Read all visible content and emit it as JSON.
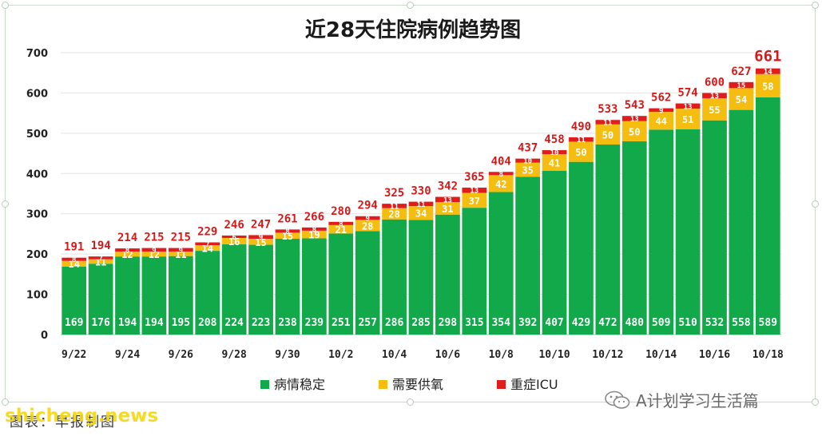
{
  "chart_data": {
    "type": "bar",
    "stacked": true,
    "title": "近28天住院病例趋势图",
    "categories": [
      "9/22",
      "9/23",
      "9/24",
      "9/25",
      "9/26",
      "9/27",
      "9/28",
      "9/29",
      "9/30",
      "10/1",
      "10/2",
      "10/3",
      "10/4",
      "10/5",
      "10/6",
      "10/7",
      "10/8",
      "10/9",
      "10/10",
      "10/11",
      "10/12",
      "10/13",
      "10/14",
      "10/15",
      "10/16",
      "10/17",
      "10/18"
    ],
    "x_tick_labels": [
      "9/22",
      "9/24",
      "9/26",
      "9/28",
      "9/30",
      "10/2",
      "10/4",
      "10/6",
      "10/8",
      "10/10",
      "10/12",
      "10/14",
      "10/16",
      "10/18"
    ],
    "series": [
      {
        "name": "病情稳定",
        "color": "#12a94b",
        "values": [
          169,
          176,
          194,
          194,
          195,
          208,
          224,
          223,
          238,
          239,
          251,
          257,
          286,
          285,
          298,
          315,
          354,
          392,
          407,
          429,
          472,
          480,
          509,
          510,
          532,
          558,
          589
        ]
      },
      {
        "name": "需要供氧",
        "color": "#f5bd0f",
        "values": [
          14,
          11,
          12,
          12,
          11,
          14,
          16,
          15,
          15,
          19,
          21,
          28,
          28,
          34,
          31,
          37,
          42,
          35,
          41,
          50,
          50,
          50,
          44,
          51,
          55,
          54,
          58
        ]
      },
      {
        "name": "重症ICU",
        "color": "#e11c1c",
        "values": [
          8,
          7,
          8,
          9,
          9,
          7,
          6,
          9,
          8,
          8,
          8,
          9,
          11,
          11,
          13,
          13,
          8,
          10,
          10,
          11,
          11,
          13,
          9,
          13,
          13,
          15,
          14
        ]
      }
    ],
    "totals": [
      191,
      194,
      214,
      215,
      215,
      229,
      246,
      247,
      261,
      266,
      280,
      294,
      325,
      330,
      342,
      365,
      404,
      437,
      458,
      490,
      533,
      543,
      562,
      574,
      600,
      627,
      661
    ],
    "yticks": [
      0,
      100,
      200,
      300,
      400,
      500,
      600,
      700
    ],
    "ylim": [
      0,
      700
    ],
    "grid": true,
    "legend_position": "bottom"
  },
  "caption": "图表：早报制图",
  "watermark": "shicheng.news",
  "wechat_label": "A计划学习生活篇"
}
